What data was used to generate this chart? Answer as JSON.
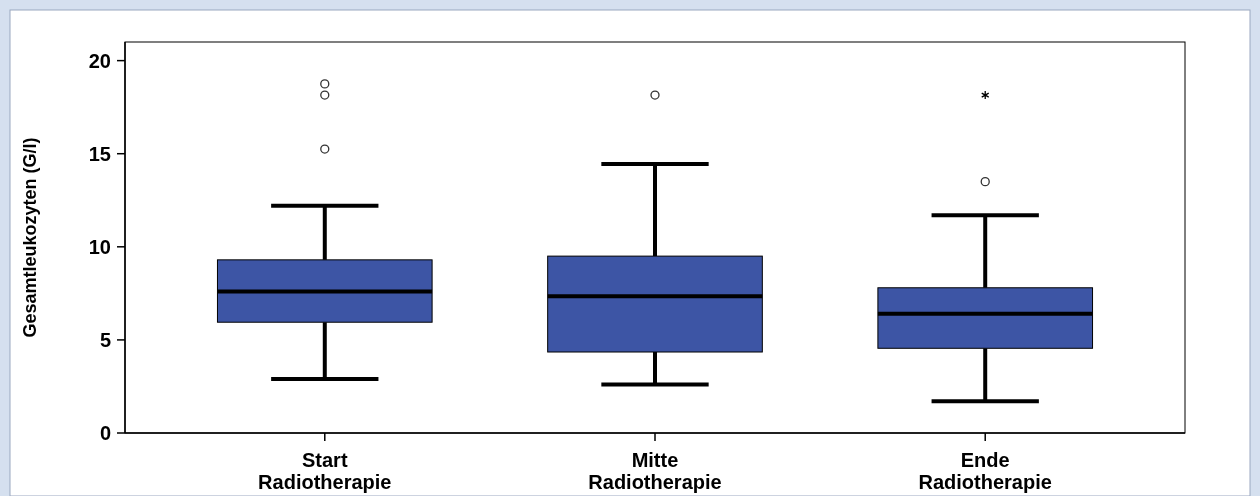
{
  "chart_data": {
    "type": "box",
    "ylabel": "Gesamtleukozyten (G/l)",
    "categories": [
      "Start Radiotherapie",
      "Mitte Radiotherapie",
      "Ende Radiotherapie"
    ],
    "ylim": [
      0,
      21
    ],
    "yticks": [
      0,
      5,
      10,
      15,
      20
    ],
    "grid": false,
    "series": [
      {
        "color": "#3d55a5",
        "boxes": [
          {
            "low": 2.9,
            "q1": 5.95,
            "median": 7.6,
            "q3": 9.3,
            "high": 12.2,
            "outliers": [
              18.75,
              18.15,
              15.25
            ]
          },
          {
            "low": 2.6,
            "q1": 4.35,
            "median": 7.35,
            "q3": 9.5,
            "high": 14.45,
            "outliers": [
              18.15
            ]
          },
          {
            "low": 1.7,
            "q1": 4.55,
            "median": 6.4,
            "q3": 7.8,
            "high": 11.7,
            "outliers": [
              18.15,
              13.5
            ]
          }
        ]
      }
    ]
  }
}
